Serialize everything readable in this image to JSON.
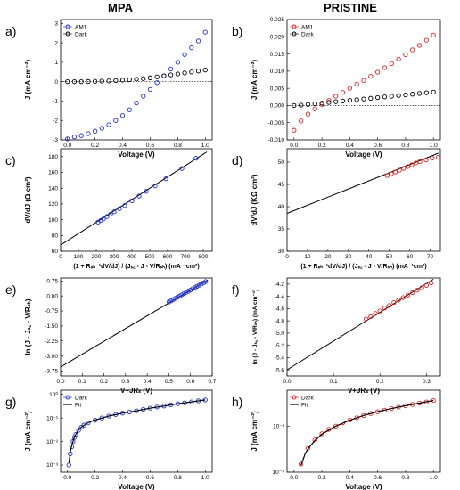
{
  "headers": {
    "left": "MPA",
    "right": "PRISTINE"
  },
  "colors": {
    "blue": "#1f2fd8",
    "red": "#e02020",
    "black": "#000000"
  },
  "chart_data": [
    {
      "id": "a",
      "letter": "a)",
      "type": "scatter",
      "xlabel": "Voltage (V)",
      "ylabel": "J (mA cm⁻²)",
      "xlim": [
        -0.05,
        1.05
      ],
      "ylim": [
        -3,
        3.2
      ],
      "xticks": [
        0.0,
        0.2,
        0.4,
        0.6,
        0.8,
        1.0
      ],
      "xtick_labels": [
        "0.0",
        "0.2",
        "0.4",
        "0.6",
        "0.8",
        "1.0"
      ],
      "yticks": [
        -3,
        -2,
        -1,
        0,
        1,
        2,
        3
      ],
      "ytick_labels": [
        "-3",
        "-2",
        "-1",
        "0",
        "1",
        "2",
        "3"
      ],
      "zero_line": true,
      "legend_position": "top-left",
      "series": [
        {
          "name": "AM1",
          "color": "#1f2fd8",
          "marker": "circle",
          "x": [
            0.0,
            0.05,
            0.1,
            0.15,
            0.2,
            0.25,
            0.3,
            0.35,
            0.4,
            0.45,
            0.5,
            0.55,
            0.6,
            0.65,
            0.7,
            0.75,
            0.8,
            0.85,
            0.9,
            0.95,
            1.0
          ],
          "y": [
            -2.95,
            -2.85,
            -2.78,
            -2.68,
            -2.55,
            -2.4,
            -2.22,
            -2.0,
            -1.75,
            -1.45,
            -1.1,
            -0.75,
            -0.4,
            -0.05,
            0.3,
            0.65,
            1.0,
            1.4,
            1.75,
            2.1,
            2.55
          ]
        },
        {
          "name": "Dark",
          "color": "#000000",
          "marker": "circle",
          "x": [
            0.0,
            0.05,
            0.1,
            0.15,
            0.2,
            0.25,
            0.3,
            0.35,
            0.4,
            0.45,
            0.5,
            0.55,
            0.6,
            0.65,
            0.7,
            0.75,
            0.8,
            0.85,
            0.9,
            0.95,
            1.0
          ],
          "y": [
            0.0,
            0.0,
            0.0,
            0.01,
            0.02,
            0.03,
            0.04,
            0.06,
            0.08,
            0.1,
            0.13,
            0.16,
            0.2,
            0.25,
            0.3,
            0.35,
            0.4,
            0.45,
            0.5,
            0.55,
            0.6
          ]
        }
      ]
    },
    {
      "id": "b",
      "letter": "b)",
      "type": "scatter",
      "xlabel": "Voltage (V)",
      "ylabel": "J (mA cm⁻²)",
      "xlim": [
        -0.05,
        1.05
      ],
      "ylim": [
        -0.01,
        0.025
      ],
      "xticks": [
        0.0,
        0.2,
        0.4,
        0.6,
        0.8,
        1.0
      ],
      "xtick_labels": [
        "0.0",
        "0.2",
        "0.4",
        "0.6",
        "0.8",
        "1.0"
      ],
      "yticks": [
        -0.01,
        -0.005,
        0.0,
        0.005,
        0.01,
        0.015,
        0.02,
        0.025
      ],
      "ytick_labels": [
        "-0.010",
        "-0.005",
        "0.000",
        "0.005",
        "0.010",
        "0.015",
        "0.020",
        "0.025"
      ],
      "zero_line": true,
      "legend_position": "top-left",
      "series": [
        {
          "name": "AM1",
          "color": "#e02020",
          "marker": "circle",
          "x": [
            0.0,
            0.05,
            0.1,
            0.15,
            0.2,
            0.25,
            0.3,
            0.35,
            0.4,
            0.45,
            0.5,
            0.55,
            0.6,
            0.65,
            0.7,
            0.75,
            0.8,
            0.85,
            0.9,
            0.95,
            1.0
          ],
          "y": [
            -0.0072,
            -0.0045,
            -0.0025,
            -0.001,
            0.0003,
            0.0015,
            0.0027,
            0.0038,
            0.005,
            0.0062,
            0.0073,
            0.0085,
            0.0097,
            0.011,
            0.0122,
            0.0135,
            0.0148,
            0.0162,
            0.0175,
            0.019,
            0.0205
          ]
        },
        {
          "name": "Dark",
          "color": "#000000",
          "marker": "circle",
          "x": [
            0.0,
            0.05,
            0.1,
            0.15,
            0.2,
            0.25,
            0.3,
            0.35,
            0.4,
            0.45,
            0.5,
            0.55,
            0.6,
            0.65,
            0.7,
            0.75,
            0.8,
            0.85,
            0.9,
            0.95,
            1.0
          ],
          "y": [
            0.0,
            0.0001,
            0.0003,
            0.0005,
            0.0007,
            0.0009,
            0.0011,
            0.0013,
            0.0015,
            0.0017,
            0.0019,
            0.0021,
            0.0023,
            0.0025,
            0.0027,
            0.0029,
            0.0031,
            0.0033,
            0.0035,
            0.0037,
            0.0039
          ]
        }
      ]
    },
    {
      "id": "c",
      "letter": "c)",
      "type": "scatter",
      "xlabel": "(1 + Rₛₕ⁻¹dV/dJ) / (Jₛ꜀ - J - V/Rₛₕ) (mA⁻¹cm²)",
      "ylabel": "dV/dJ (Ω cm²)",
      "xlim": [
        0,
        850
      ],
      "ylim": [
        60,
        190
      ],
      "xticks": [
        0,
        100,
        200,
        300,
        400,
        500,
        600,
        700,
        800
      ],
      "xtick_labels": [
        "0",
        "100",
        "200",
        "300",
        "400",
        "500",
        "600",
        "700",
        "800"
      ],
      "yticks": [
        60,
        80,
        100,
        120,
        140,
        160,
        180
      ],
      "ytick_labels": [
        "60",
        "80",
        "100",
        "120",
        "140",
        "160",
        "180"
      ],
      "fit_line": {
        "x": [
          0,
          820
        ],
        "y": [
          68,
          186
        ]
      },
      "series": [
        {
          "name": "",
          "color": "#1f2fd8",
          "marker": "circle",
          "x": [
            210,
            225,
            240,
            260,
            280,
            300,
            330,
            360,
            400,
            440,
            480,
            530,
            590,
            680,
            760
          ],
          "y": [
            97,
            99,
            101,
            104,
            107,
            110,
            114,
            118,
            124,
            130,
            136,
            143,
            152,
            165,
            178
          ]
        }
      ]
    },
    {
      "id": "d",
      "letter": "d)",
      "type": "scatter",
      "xlabel": "(1 + Rₛₕ⁻¹dV/dJ) / (Jₛ꜀ - J - V/Rₛₕ) (mA⁻¹cm²)",
      "ylabel": "dV/dJ (KΩ cm²)",
      "xlim": [
        0,
        75
      ],
      "ylim": [
        30,
        53
      ],
      "xticks": [
        0,
        10,
        20,
        30,
        40,
        50,
        60,
        70
      ],
      "xtick_labels": [
        "0",
        "10",
        "20",
        "30",
        "40",
        "50",
        "60",
        "70"
      ],
      "yticks": [
        30,
        35,
        40,
        45,
        50
      ],
      "ytick_labels": [
        "30",
        "35",
        "40",
        "45",
        "50"
      ],
      "fit_line": {
        "x": [
          0,
          74
        ],
        "y": [
          38.5,
          52
        ]
      },
      "series": [
        {
          "name": "",
          "color": "#e02020",
          "marker": "circle",
          "x": [
            49,
            51,
            53,
            55,
            57,
            59,
            61,
            63,
            65,
            68,
            71,
            74
          ],
          "y": [
            47.0,
            47.4,
            47.8,
            48.2,
            48.6,
            49.0,
            49.4,
            49.8,
            50.1,
            50.5,
            50.9,
            51.1
          ]
        }
      ]
    },
    {
      "id": "e",
      "letter": "e)",
      "type": "scatter",
      "xlabel": "V+JRₛ (V)",
      "ylabel": "ln (J - Jₛ꜀ - V/Rₛₕ)",
      "xlim": [
        0,
        0.7
      ],
      "ylim": [
        -4,
        0.9
      ],
      "xticks": [
        0.0,
        0.1,
        0.2,
        0.3,
        0.4,
        0.5,
        0.6,
        0.7
      ],
      "xtick_labels": [
        "0.0",
        "0.1",
        "0.2",
        "0.3",
        "0.4",
        "0.5",
        "0.6",
        "0.7"
      ],
      "yticks": [
        -3.75,
        -3.0,
        -2.25,
        -1.5,
        -0.75,
        0.0,
        0.75
      ],
      "ytick_labels": [
        "-3.75",
        "-3.00",
        "-2.25",
        "-1.50",
        "-0.75",
        "0.00",
        "0.75"
      ],
      "fit_line": {
        "x": [
          0,
          0.68
        ],
        "y": [
          -3.55,
          0.8
        ]
      },
      "series": [
        {
          "name": "",
          "color": "#1f2fd8",
          "marker": "circle",
          "x": [
            0.5,
            0.51,
            0.52,
            0.53,
            0.54,
            0.55,
            0.56,
            0.57,
            0.58,
            0.59,
            0.6,
            0.61,
            0.62,
            0.63,
            0.64,
            0.65,
            0.66,
            0.67
          ],
          "y": [
            -0.3,
            -0.24,
            -0.18,
            -0.12,
            -0.06,
            0.0,
            0.06,
            0.12,
            0.18,
            0.24,
            0.3,
            0.36,
            0.42,
            0.48,
            0.54,
            0.6,
            0.66,
            0.72
          ]
        }
      ]
    },
    {
      "id": "f",
      "letter": "f)",
      "type": "scatter",
      "xlabel": "V+JRₛ (V)",
      "ylabel": "ln (J - Jₛ꜀ - V/Rₛₕ) (mA cm⁻²)",
      "xlim": [
        0,
        0.33
      ],
      "ylim": [
        -5.7,
        -4.1
      ],
      "xticks": [
        0.0,
        0.1,
        0.2,
        0.3
      ],
      "xtick_labels": [
        "0.0",
        "0.1",
        "0.2",
        "0.3"
      ],
      "yticks": [
        -5.6,
        -5.4,
        -5.2,
        -5.0,
        -4.8,
        -4.6,
        -4.4,
        -4.2
      ],
      "ytick_labels": [
        "-5.6",
        "-5.4",
        "-5.2",
        "-5.0",
        "-4.8",
        "-4.6",
        "-4.4",
        "-4.2"
      ],
      "fit_line": {
        "x": [
          0,
          0.315
        ],
        "y": [
          -5.6,
          -4.12
        ]
      },
      "series": [
        {
          "name": "",
          "color": "#e02020",
          "marker": "circle",
          "x": [
            0.17,
            0.18,
            0.19,
            0.2,
            0.21,
            0.22,
            0.23,
            0.24,
            0.25,
            0.26,
            0.27,
            0.28,
            0.29,
            0.3,
            0.31
          ],
          "y": [
            -4.77,
            -4.73,
            -4.68,
            -4.64,
            -4.59,
            -4.55,
            -4.5,
            -4.46,
            -4.42,
            -4.38,
            -4.34,
            -4.3,
            -4.26,
            -4.22,
            -4.18
          ]
        }
      ]
    },
    {
      "id": "g",
      "letter": "g)",
      "type": "scatter",
      "xlabel": "Voltage (V)",
      "ylabel": "J (mA cm⁻²)",
      "xlim": [
        -0.05,
        1.05
      ],
      "ylog": true,
      "ylim": [
        0.0005,
        1.5
      ],
      "xticks": [
        0.0,
        0.2,
        0.4,
        0.6,
        0.8,
        1.0
      ],
      "xtick_labels": [
        "0.0",
        "0.2",
        "0.4",
        "0.6",
        "0.8",
        "1.0"
      ],
      "yticks": [
        0.001,
        0.01,
        0.1,
        1
      ],
      "ytick_labels": [
        "10⁻³",
        "10⁻²",
        "10⁻¹",
        "10⁰"
      ],
      "legend_position": "top-left",
      "series": [
        {
          "name": "Dark",
          "color": "#1f2fd8",
          "marker": "circle",
          "x": [
            0.01,
            0.02,
            0.03,
            0.04,
            0.05,
            0.06,
            0.08,
            0.1,
            0.12,
            0.15,
            0.2,
            0.25,
            0.3,
            0.35,
            0.4,
            0.45,
            0.5,
            0.55,
            0.6,
            0.65,
            0.7,
            0.75,
            0.8,
            0.85,
            0.9,
            0.95,
            1.0
          ],
          "y": [
            0.001,
            0.003,
            0.006,
            0.01,
            0.015,
            0.02,
            0.03,
            0.04,
            0.05,
            0.062,
            0.08,
            0.1,
            0.12,
            0.14,
            0.16,
            0.18,
            0.2,
            0.23,
            0.26,
            0.29,
            0.32,
            0.36,
            0.4,
            0.44,
            0.48,
            0.53,
            0.58
          ]
        },
        {
          "name": "Fit",
          "color": "#000000",
          "marker": "line",
          "x": [
            0.01,
            0.02,
            0.03,
            0.05,
            0.08,
            0.1,
            0.15,
            0.2,
            0.3,
            0.4,
            0.5,
            0.6,
            0.7,
            0.8,
            0.9,
            1.0
          ],
          "y": [
            0.0012,
            0.0035,
            0.0065,
            0.016,
            0.031,
            0.041,
            0.063,
            0.082,
            0.12,
            0.16,
            0.2,
            0.26,
            0.32,
            0.4,
            0.48,
            0.58
          ]
        }
      ]
    },
    {
      "id": "h",
      "letter": "h)",
      "type": "scatter",
      "xlabel": "Voltage (V)",
      "ylabel": "J (mA cm⁻²)",
      "xlim": [
        -0.05,
        1.05
      ],
      "ylog": true,
      "ylim": [
        0.0001,
        0.006
      ],
      "xticks": [
        0.0,
        0.2,
        0.4,
        0.6,
        0.8,
        1.0
      ],
      "xtick_labels": [
        "0.0",
        "0.2",
        "0.4",
        "0.6",
        "0.8",
        "1.0"
      ],
      "yticks": [
        0.0001,
        0.001
      ],
      "ytick_labels": [
        "10⁻⁴",
        "10⁻³"
      ],
      "legend_position": "top-left",
      "series": [
        {
          "name": "Dark",
          "color": "#e02020",
          "marker": "circle",
          "x": [
            0.05,
            0.1,
            0.15,
            0.2,
            0.25,
            0.3,
            0.35,
            0.4,
            0.45,
            0.5,
            0.55,
            0.6,
            0.65,
            0.7,
            0.75,
            0.8,
            0.85,
            0.9,
            0.95,
            1.0
          ],
          "y": [
            0.00015,
            0.00033,
            0.0005,
            0.00068,
            0.00085,
            0.001,
            0.00118,
            0.00135,
            0.00152,
            0.0017,
            0.00188,
            0.00205,
            0.00222,
            0.0024,
            0.00258,
            0.00276,
            0.00295,
            0.00315,
            0.00335,
            0.0036
          ]
        },
        {
          "name": "Fit",
          "color": "#000000",
          "marker": "line",
          "x": [
            0.05,
            0.08,
            0.1,
            0.15,
            0.2,
            0.3,
            0.4,
            0.5,
            0.6,
            0.7,
            0.8,
            0.9,
            1.0
          ],
          "y": [
            0.00014,
            0.00025,
            0.00032,
            0.00049,
            0.00067,
            0.001,
            0.00134,
            0.0017,
            0.00205,
            0.0024,
            0.00276,
            0.00315,
            0.0036
          ]
        }
      ]
    }
  ]
}
